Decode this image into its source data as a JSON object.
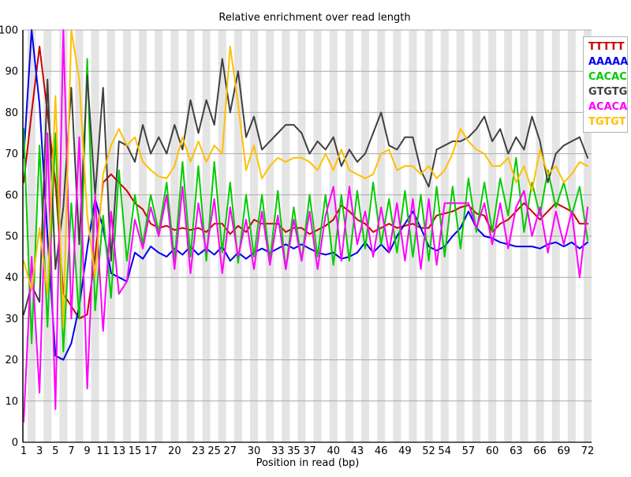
{
  "title": "Relative enrichment over read length",
  "axes": {
    "xlabel": "Position in read (bp)",
    "x_tick_labels": [
      1,
      3,
      5,
      7,
      9,
      11,
      13,
      15,
      17,
      20,
      23,
      25,
      27,
      30,
      33,
      35,
      37,
      40,
      43,
      46,
      49,
      52,
      54,
      57,
      60,
      63,
      66,
      69,
      72
    ],
    "y_tick_labels": [
      0,
      10,
      20,
      30,
      40,
      50,
      60,
      70,
      80,
      90,
      100
    ]
  },
  "style": {
    "band_color": "#e4e4e4",
    "grid_color": "#aaaaaa",
    "axis_color": "#000000",
    "legend_border": "#b4b4b4"
  },
  "chart_data": {
    "type": "line",
    "title": "Relative enrichment over read length",
    "xlabel": "Position in read (bp)",
    "ylabel": "",
    "xlim": [
      1,
      72
    ],
    "ylim": [
      0,
      100
    ],
    "grid": "horizontal",
    "background": "alternating vertical bands",
    "legend_position": "top-right",
    "x": [
      1,
      2,
      3,
      4,
      5,
      6,
      7,
      8,
      9,
      10,
      11,
      12,
      13,
      14,
      15,
      16,
      17,
      18,
      19,
      20,
      21,
      22,
      23,
      24,
      25,
      26,
      27,
      28,
      29,
      30,
      31,
      32,
      33,
      34,
      35,
      36,
      37,
      38,
      39,
      40,
      41,
      42,
      43,
      44,
      45,
      46,
      47,
      48,
      49,
      50,
      51,
      52,
      53,
      54,
      55,
      56,
      57,
      58,
      59,
      60,
      61,
      62,
      63,
      64,
      65,
      66,
      67,
      68,
      69,
      70,
      71,
      72
    ],
    "series": [
      {
        "name": "TTTTT",
        "color": "#cc0000",
        "values": [
          63,
          80,
          96,
          80,
          63,
          36,
          33,
          30,
          31,
          45,
          63,
          65,
          63,
          61,
          58,
          56.5,
          53,
          52,
          52.5,
          51.5,
          52,
          51.5,
          52,
          51,
          53,
          53,
          50.5,
          52.5,
          51,
          54,
          53,
          53,
          53,
          51,
          52,
          52,
          50.5,
          51.5,
          52.5,
          54,
          57.5,
          56,
          54,
          53,
          51,
          52,
          53,
          52,
          52.5,
          53,
          52,
          52,
          55,
          55.5,
          56,
          57,
          57.5,
          55.5,
          55,
          51,
          53,
          54,
          56,
          58,
          56,
          54,
          56,
          58,
          57,
          56,
          53,
          53
        ]
      },
      {
        "name": "AAAAA",
        "color": "#0000ee",
        "values": [
          69,
          100,
          82,
          50,
          21,
          20,
          24,
          33,
          47,
          59,
          52,
          41,
          40,
          39,
          46,
          44.5,
          47.5,
          46,
          45,
          47,
          45.5,
          47.5,
          45.5,
          47,
          45.5,
          47.5,
          44,
          46,
          44.5,
          46,
          47,
          46,
          47,
          48,
          47,
          48,
          47,
          46,
          45.5,
          46,
          44.5,
          45,
          46,
          48.5,
          46,
          48,
          46,
          50,
          53,
          56,
          52,
          47.5,
          46.5,
          47.5,
          50,
          52,
          56,
          52,
          50,
          49.5,
          48.5,
          48,
          47.5,
          47.5,
          47.5,
          47,
          48,
          48.5,
          47.5,
          48.5,
          47,
          48.5
        ]
      },
      {
        "name": "CACAC",
        "color": "#00cc00",
        "values": [
          76,
          24,
          72,
          28,
          75,
          22,
          58,
          30,
          93,
          32,
          55,
          35,
          66,
          44,
          60,
          48,
          60,
          51,
          63,
          44,
          68,
          45,
          67,
          44,
          68,
          46,
          63,
          43.5,
          60,
          45,
          60,
          44,
          61,
          42,
          57,
          44,
          60,
          45,
          60,
          43,
          60,
          44,
          61,
          47,
          63,
          48,
          59,
          46,
          61,
          45,
          60,
          44,
          62,
          45,
          62,
          47,
          64,
          51,
          63,
          51,
          64,
          55,
          69,
          51,
          63,
          55,
          66,
          57,
          63,
          55,
          62,
          49
        ]
      },
      {
        "name": "GTGTG",
        "color": "#404040",
        "values": [
          31,
          38,
          34,
          88,
          42,
          57,
          86,
          48,
          89,
          60,
          86,
          44,
          73,
          72,
          68,
          77,
          70,
          74,
          70,
          77,
          71,
          83,
          75,
          83,
          77,
          93,
          80,
          90,
          74,
          79,
          71,
          73,
          75,
          77,
          77,
          75,
          70,
          73,
          71,
          74,
          67,
          71,
          68,
          70,
          75,
          80,
          72,
          71,
          74,
          74,
          66,
          62,
          71,
          72,
          73,
          73,
          74,
          76,
          79,
          73,
          76,
          70,
          74,
          71,
          79,
          73,
          63,
          70,
          72,
          73,
          74,
          69
        ]
      },
      {
        "name": "ACACA",
        "color": "#ff00ff",
        "values": [
          5,
          45,
          12,
          75,
          8,
          100,
          30,
          74,
          13,
          60,
          27,
          56,
          36,
          39,
          54,
          47,
          57,
          50,
          60,
          42,
          62,
          41,
          58,
          46,
          59,
          41,
          57,
          45,
          54,
          42,
          56,
          43,
          55,
          42,
          54,
          44,
          56,
          42,
          55,
          62,
          44,
          62,
          48,
          56,
          45,
          57,
          46,
          58,
          44,
          59,
          42,
          59,
          43,
          58,
          58,
          58,
          58,
          52,
          58,
          48,
          58,
          47,
          57,
          61,
          50,
          57,
          46,
          56,
          48,
          56,
          40,
          57
        ]
      },
      {
        "name": "TGTGT",
        "color": "#ffc000",
        "values": [
          44,
          37,
          52,
          36,
          84,
          28,
          100,
          88,
          55,
          40,
          65,
          72,
          76,
          72,
          74,
          68,
          66,
          64.5,
          64,
          67,
          74,
          68,
          73,
          68,
          72,
          70,
          96,
          82,
          66,
          72,
          64,
          67,
          69,
          68,
          69,
          69,
          68,
          66,
          70,
          66,
          71,
          66,
          65,
          64,
          65,
          70,
          71,
          66,
          67,
          67,
          65,
          67,
          64,
          66,
          70,
          76,
          73,
          71,
          70,
          67,
          67,
          69,
          63,
          67,
          61,
          71,
          65,
          67,
          63,
          65,
          68,
          67
        ]
      }
    ]
  }
}
